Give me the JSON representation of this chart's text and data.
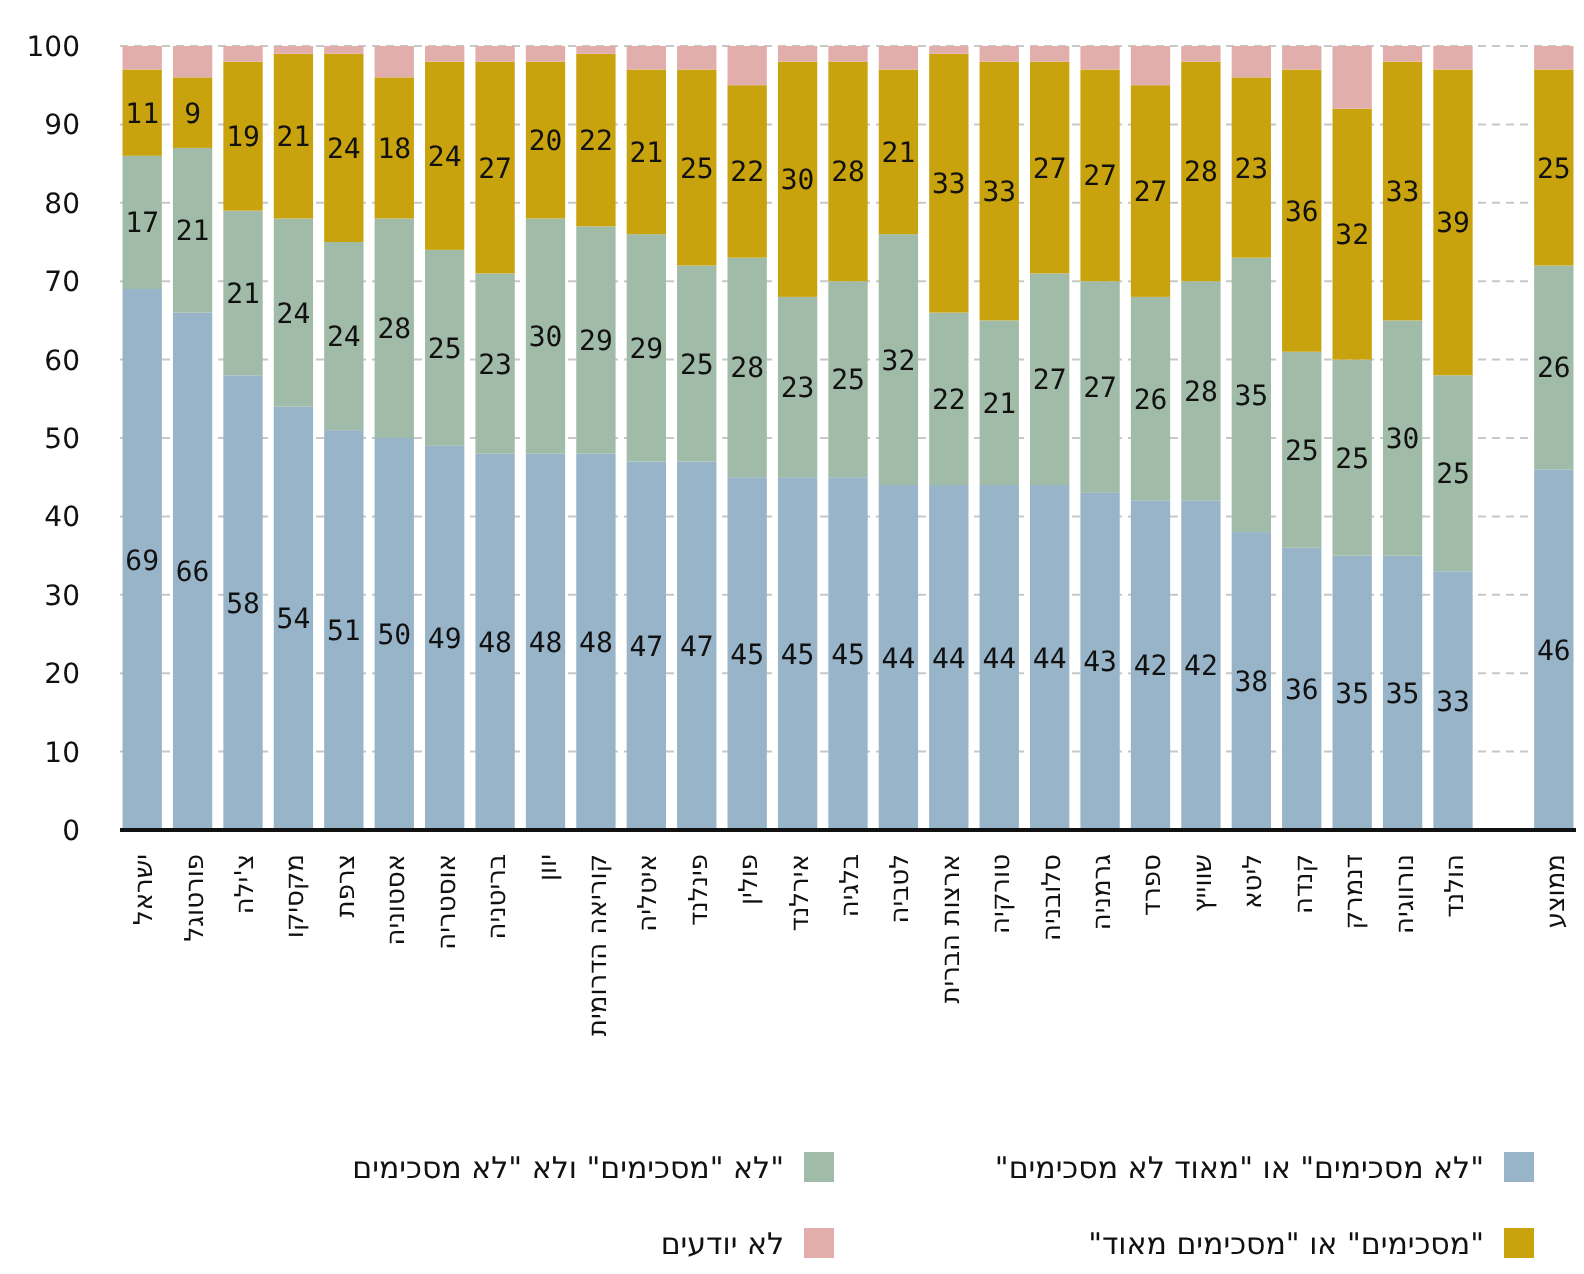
{
  "chart_data": {
    "type": "bar",
    "stacked": true,
    "categories": [
      "ישראל",
      "פורטוגל",
      "צ'ילה",
      "מקסיקו",
      "צרפת",
      "אסטוניה",
      "אוסטריה",
      "בריטניה",
      "יוון",
      "קוריאה הדרומית",
      "איטליה",
      "פינלנד",
      "פולין",
      "אירלנד",
      "בלגיה",
      "לטביה",
      "ארצות הברית",
      "טורקיה",
      "סלובניה",
      "גרמניה",
      "ספרד",
      "שווייץ",
      "ליטא",
      "קנדה",
      "דנמרק",
      "נורווגיה",
      "הולנד",
      null,
      "ממוצע"
    ],
    "series": [
      {
        "name": "\"לא מסכימים\" או \"מאוד לא מסכימים\"",
        "color": "#97b4c9",
        "values": [
          69,
          66,
          58,
          54,
          51,
          50,
          49,
          48,
          48,
          48,
          47,
          47,
          45,
          45,
          45,
          44,
          44,
          44,
          44,
          43,
          42,
          42,
          38,
          36,
          35,
          35,
          33,
          null,
          46
        ],
        "value_labels": [
          "69",
          "66",
          "58",
          "54",
          "51",
          "50",
          "49",
          "48",
          "48",
          "48",
          "47",
          "47",
          "45",
          "45",
          "45",
          "44",
          "44",
          "44",
          "44",
          "43",
          "42",
          "42",
          "38",
          "36",
          "35",
          "35",
          "33",
          null,
          "46"
        ]
      },
      {
        "name": "לא \"מסכימים\" ולא \"לא מסכימים\"",
        "color": "#a0bba7",
        "values": [
          17,
          21,
          21,
          24,
          24,
          28,
          25,
          23,
          30,
          29,
          29,
          25,
          28,
          23,
          25,
          32,
          22,
          21,
          27,
          27,
          26,
          28,
          35,
          25,
          25,
          30,
          25,
          null,
          26
        ],
        "value_labels": [
          "17",
          "21",
          "21",
          "24",
          "24",
          "28",
          "25",
          "23",
          "30",
          "29",
          "29",
          "25",
          "28",
          "23",
          "25",
          "32",
          "22",
          "21",
          "27",
          "27",
          "26",
          "28",
          "35",
          "25",
          "25",
          "30",
          "25",
          null,
          "26"
        ]
      },
      {
        "name": "\"מסכימים\" או \"מסכימים מאוד\"",
        "color": "#c9a30e",
        "values": [
          11,
          9,
          19,
          21,
          24,
          18,
          24,
          27,
          20,
          22,
          21,
          25,
          22,
          30,
          28,
          21,
          33,
          33,
          27,
          27,
          27,
          28,
          23,
          36,
          32,
          33,
          39,
          null,
          25
        ],
        "value_labels": [
          "11",
          "9",
          "19",
          "21",
          "24",
          "18",
          "24",
          "27",
          "20",
          "22",
          "21",
          "25",
          "22",
          "30",
          "28",
          "21",
          "33",
          "33",
          "27",
          "27",
          "27",
          "28",
          "23",
          "36",
          "32",
          "33",
          "39",
          null,
          "25"
        ]
      },
      {
        "name": "לא יודעים",
        "color": "#e2aeab",
        "values": [
          3,
          4,
          2,
          1,
          1,
          4,
          2,
          2,
          2,
          1,
          3,
          3,
          5,
          2,
          2,
          3,
          1,
          2,
          2,
          3,
          5,
          2,
          4,
          3,
          8,
          2,
          3,
          null,
          3
        ]
      }
    ],
    "ylim": [
      0,
      100
    ],
    "yticks": [
      0,
      10,
      20,
      30,
      40,
      50,
      60,
      70,
      80,
      90,
      100
    ],
    "grid": "y",
    "legend": "bottom"
  }
}
